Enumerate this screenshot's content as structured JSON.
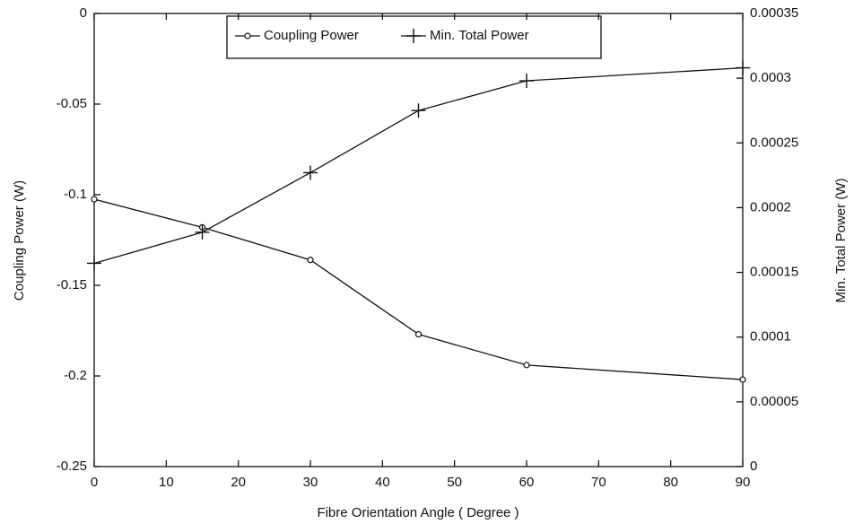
{
  "chart_data": {
    "type": "line",
    "x_label": "Fibre Orientation Angle ( Degree )",
    "y_label": "Coupling Power (W)",
    "y2_label": "Min. Total Power (W)",
    "x": [
      0,
      15,
      30,
      45,
      60,
      90
    ],
    "series": [
      {
        "name": "Coupling Power",
        "color": "#111111",
        "marker": "circle",
        "values": [
          -0.1025,
          -0.118,
          -0.136,
          -0.177,
          -0.194,
          -0.202
        ]
      },
      {
        "name": "Min. Total Power",
        "color": "#111111",
        "marker": "plus",
        "axis": "y2",
        "values": [
          0.000157,
          0.000181,
          0.000227,
          0.000275,
          0.000298,
          0.000308
        ]
      }
    ],
    "xlim": [
      0,
      90
    ],
    "xticks": [
      0,
      10,
      20,
      30,
      40,
      50,
      60,
      70,
      80,
      90
    ],
    "ylim": [
      -0.25,
      0
    ],
    "yticks": [
      0,
      -0.05,
      -0.1,
      -0.15,
      -0.2,
      -0.25
    ],
    "y2lim": [
      0,
      0.00035
    ],
    "y2ticks": [
      0.00035,
      0.0003,
      0.00025,
      0.0002,
      0.00015,
      0.0001,
      5e-05,
      0
    ],
    "legend": "top",
    "grid": false
  }
}
